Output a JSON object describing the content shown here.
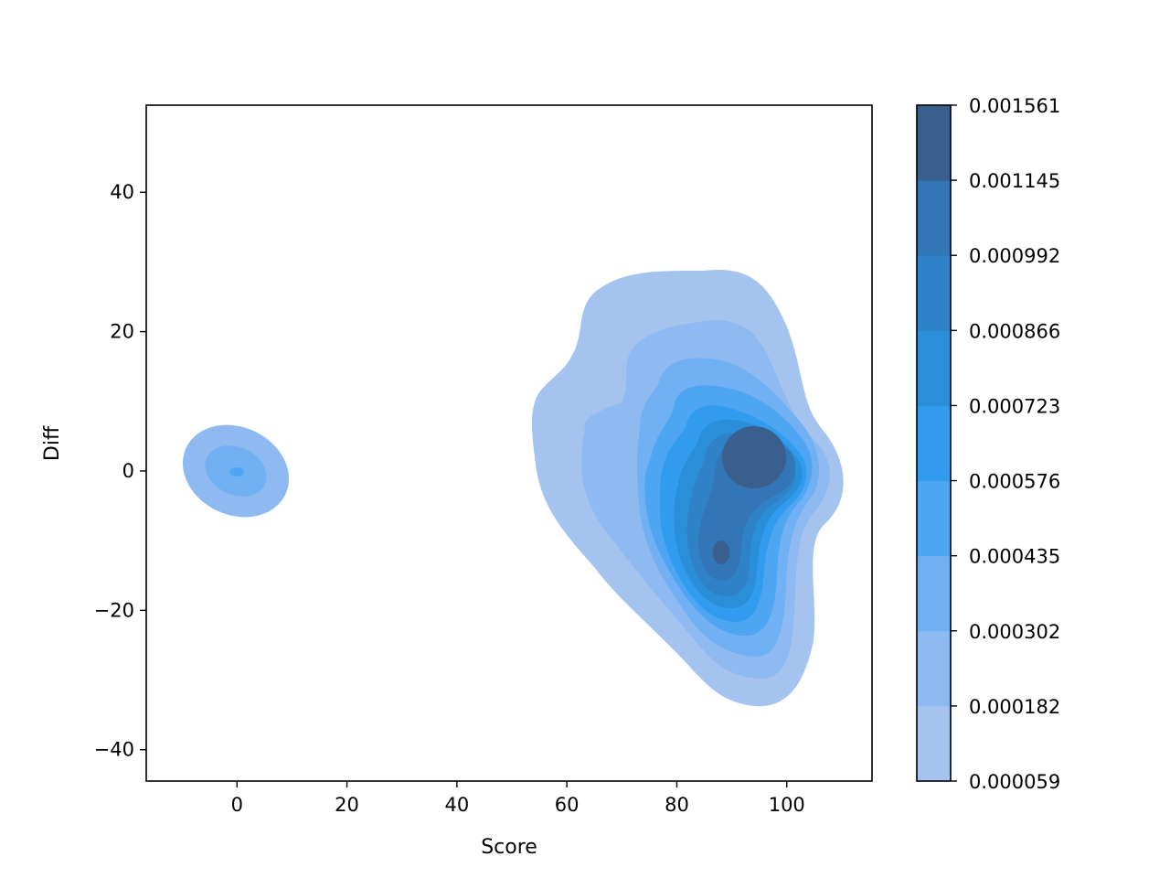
{
  "chart_data": {
    "type": "kde-contour",
    "xlabel": "Score",
    "ylabel": "Diff",
    "xlim": [
      -16.5,
      115.5
    ],
    "ylim": [
      -44.5,
      52.5
    ],
    "xticks": [
      0,
      20,
      40,
      60,
      80,
      100
    ],
    "yticks": [
      -40,
      -20,
      0,
      20,
      40
    ],
    "grid": false,
    "colorbar": {
      "position": "right",
      "levels": [
        "0.000059",
        "0.000182",
        "0.000302",
        "0.000435",
        "0.000576",
        "0.000723",
        "0.000866",
        "0.000992",
        "0.001145",
        "0.001561"
      ],
      "colors": [
        "#a5c3ef",
        "#8ebaf1",
        "#70b0f3",
        "#4ea6f2",
        "#319ced",
        "#2b8ed8",
        "#2f82c8",
        "#3276b7",
        "#3a5f8c"
      ]
    },
    "density_modes": [
      {
        "score": 0,
        "diff": 0,
        "peak_level": 2
      },
      {
        "score": 95,
        "diff": 1.5,
        "peak_level": 9
      },
      {
        "score": 88,
        "diff": -12,
        "peak_level": 9
      }
    ]
  }
}
